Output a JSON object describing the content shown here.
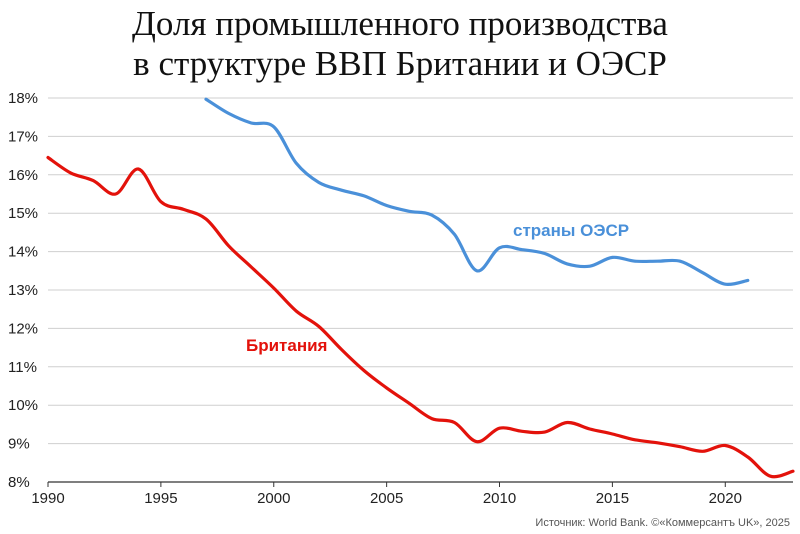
{
  "chart_data": {
    "type": "line",
    "title_lines": [
      "Доля промышленного производства",
      "в структуре ВВП Британии и ОЭСР"
    ],
    "source": "Источник: World Bank. ©«Коммерсантъ UK», 2025",
    "xlim": [
      1990,
      2023
    ],
    "ylim": [
      8,
      18
    ],
    "x_ticks": [
      1990,
      1995,
      2000,
      2005,
      2010,
      2015,
      2020
    ],
    "y_ticks": [
      "8%",
      "9%",
      "10%",
      "11%",
      "12%",
      "13%",
      "14%",
      "15%",
      "16%",
      "17%",
      "18%"
    ],
    "grid": true,
    "series": [
      {
        "name": "Британия",
        "color": "#e3120b",
        "x": [
          1990,
          1991,
          1992,
          1993,
          1994,
          1995,
          1996,
          1997,
          1998,
          1999,
          2000,
          2001,
          2002,
          2003,
          2004,
          2005,
          2006,
          2007,
          2008,
          2009,
          2010,
          2011,
          2012,
          2013,
          2014,
          2015,
          2016,
          2017,
          2018,
          2019,
          2020,
          2021,
          2022,
          2023
        ],
        "values": [
          16.45,
          16.05,
          15.85,
          15.5,
          16.15,
          15.3,
          15.1,
          14.85,
          14.15,
          13.6,
          13.05,
          12.45,
          12.05,
          11.45,
          10.9,
          10.45,
          10.05,
          9.65,
          9.55,
          9.05,
          9.4,
          9.32,
          9.3,
          9.55,
          9.38,
          9.25,
          9.1,
          9.02,
          8.92,
          8.8,
          8.95,
          8.65,
          8.15,
          8.28
        ]
      },
      {
        "name": "страны ОЭСР",
        "color": "#4a90d9",
        "x": [
          1997,
          1998,
          1999,
          2000,
          2001,
          2002,
          2003,
          2004,
          2005,
          2006,
          2007,
          2008,
          2009,
          2010,
          2011,
          2012,
          2013,
          2014,
          2015,
          2016,
          2017,
          2018,
          2019,
          2020,
          2021
        ],
        "values": [
          17.97,
          17.6,
          17.35,
          17.25,
          16.3,
          15.8,
          15.6,
          15.45,
          15.2,
          15.05,
          14.95,
          14.45,
          13.5,
          14.1,
          14.05,
          13.95,
          13.68,
          13.62,
          13.85,
          13.75,
          13.75,
          13.75,
          13.45,
          13.15,
          13.25
        ]
      }
    ]
  }
}
